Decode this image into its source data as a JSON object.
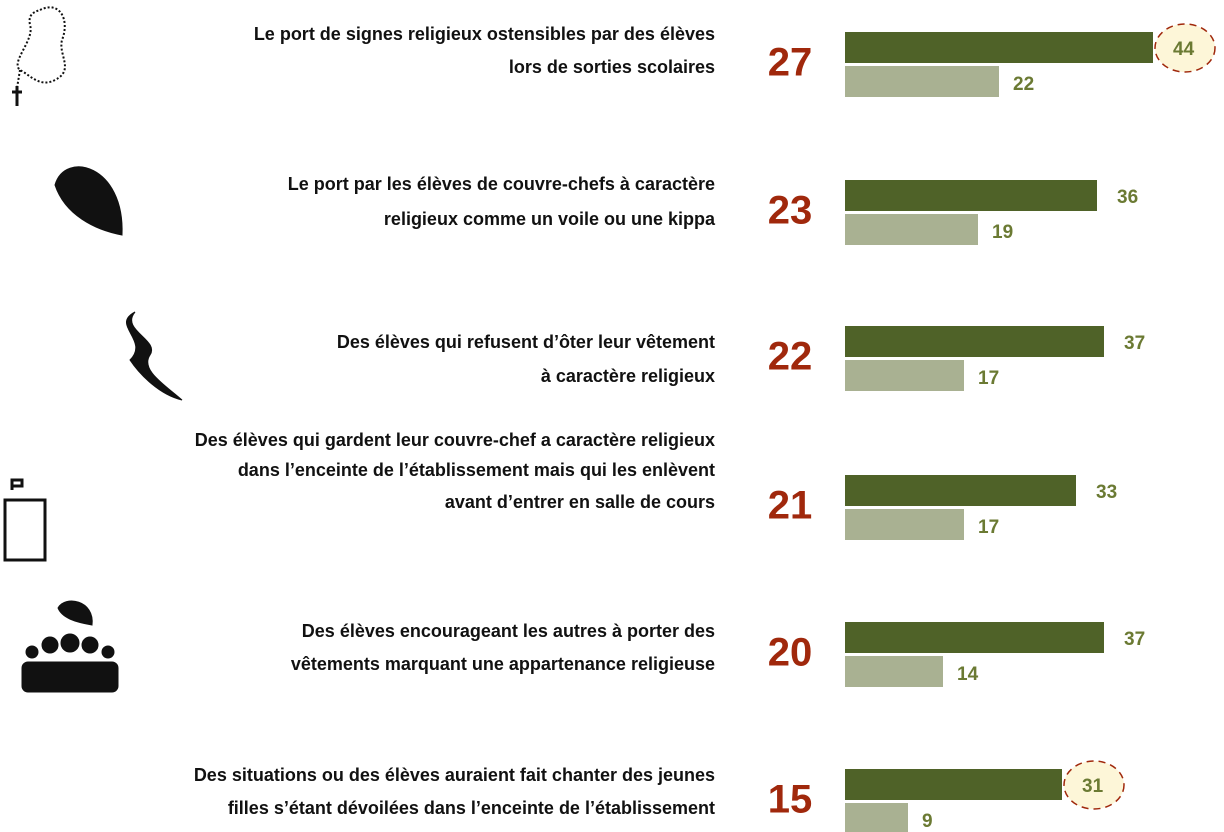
{
  "chart_data": {
    "type": "bar",
    "categories": [
      [
        "Le port de signes religieux ostensibles par des élèves",
        "lors de sorties scolaires"
      ],
      [
        "Le port par les élèves de couvre-chefs à caractère",
        "religieux comme un voile ou une kippa"
      ],
      [
        "Des élèves qui refusent d’ôter leur vêtement",
        "à caractère religieux"
      ],
      [
        "Des élèves qui gardent leur couvre-chef a caractère religieux",
        "dans l’enceinte de l’établissement mais qui les enlèvent",
        "avant d’entrer en salle de cours"
      ],
      [
        "Des élèves encourageant les autres à porter des",
        "vêtements marquant une appartenance religieuse"
      ],
      [
        "Des situations ou des élèves auraient fait chanter des jeunes",
        "filles s’étant dévoilées dans l’enceinte de l’établissement"
      ]
    ],
    "totals": [
      27,
      23,
      22,
      21,
      20,
      15
    ],
    "series": [
      {
        "color": "#4f6228",
        "values": [
          44,
          36,
          37,
          33,
          37,
          31
        ],
        "highlight": [
          true,
          false,
          false,
          false,
          false,
          true
        ]
      },
      {
        "color": "#a9b192",
        "values": [
          22,
          19,
          17,
          17,
          14,
          9
        ]
      }
    ],
    "label_color": "#6b7a33",
    "total_color": "#a0280c"
  }
}
